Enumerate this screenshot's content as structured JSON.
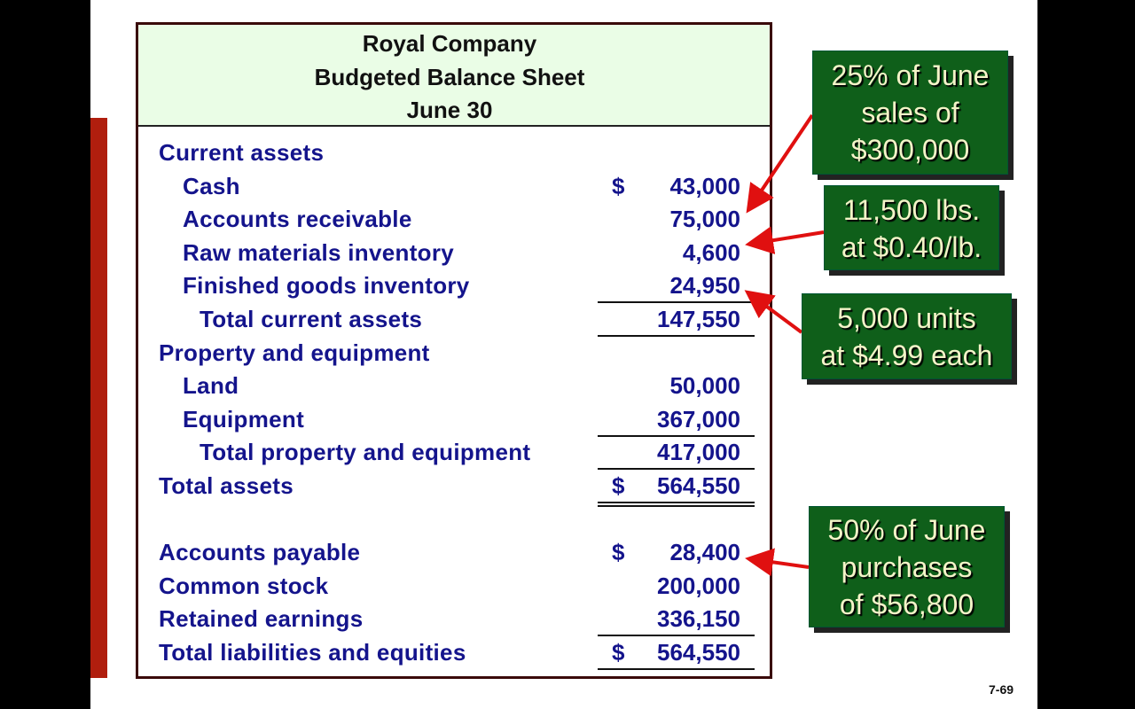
{
  "header": {
    "company": "Royal Company",
    "title": "Budgeted Balance Sheet",
    "date": "June 30"
  },
  "rows": [
    {
      "label": "Current assets",
      "level": 0,
      "dollar": "",
      "amount": ""
    },
    {
      "label": "Cash",
      "level": 1,
      "dollar": "$",
      "amount": "43,000"
    },
    {
      "label": "Accounts receivable",
      "level": 1,
      "dollar": "",
      "amount": "75,000"
    },
    {
      "label": "Raw materials inventory",
      "level": 1,
      "dollar": "",
      "amount": "4,600"
    },
    {
      "label": "Finished goods inventory",
      "level": 1,
      "dollar": "",
      "amount": "24,950",
      "rule": "single"
    },
    {
      "label": "Total current assets",
      "level": 2,
      "dollar": "",
      "amount": "147,550",
      "rule": "single"
    },
    {
      "label": "Property and equipment",
      "level": 0,
      "dollar": "",
      "amount": ""
    },
    {
      "label": "Land",
      "level": 1,
      "dollar": "",
      "amount": "50,000"
    },
    {
      "label": "Equipment",
      "level": 1,
      "dollar": "",
      "amount": "367,000",
      "rule": "single"
    },
    {
      "label": "Total property and equipment",
      "level": 2,
      "dollar": "",
      "amount": "417,000",
      "rule": "single"
    },
    {
      "label": "Total assets",
      "level": 0,
      "dollar": "$",
      "amount": "564,550",
      "rule": "double"
    },
    {
      "label": "",
      "level": 0,
      "dollar": "",
      "amount": ""
    },
    {
      "label": "Accounts payable",
      "level": 0,
      "dollar": "$",
      "amount": "28,400"
    },
    {
      "label": "Common stock",
      "level": 0,
      "dollar": "",
      "amount": "200,000"
    },
    {
      "label": "Retained earnings",
      "level": 0,
      "dollar": "",
      "amount": "336,150",
      "rule": "single"
    },
    {
      "label": "Total liabilities and equities",
      "level": 0,
      "dollar": "$",
      "amount": "564,550",
      "rule": "single"
    }
  ],
  "callouts": [
    {
      "lines": [
        "25% of June",
        "sales of",
        "$300,000"
      ]
    },
    {
      "lines": [
        "11,500 lbs.",
        "at $0.40/lb."
      ]
    },
    {
      "lines": [
        "5,000 units",
        "at $4.99 each"
      ]
    },
    {
      "lines": [
        "50% of June",
        "purchases",
        "of $56,800"
      ]
    }
  ],
  "page_number": "7-69",
  "colors": {
    "text": "#14148c",
    "header_bg": "#eafde6",
    "callout_bg": "#0f5f1a",
    "arrow": "#e01010",
    "side_bar": "#b01e0e"
  }
}
